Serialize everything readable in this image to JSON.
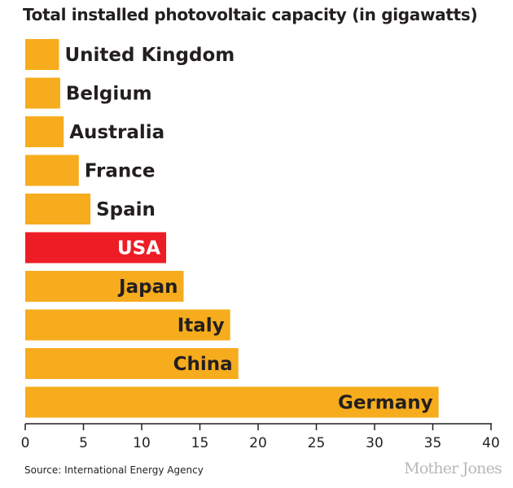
{
  "chart_data": {
    "type": "bar",
    "orientation": "horizontal",
    "title": "Total installed photovoltaic capacity (in gigawatts)",
    "categories": [
      "United Kingdom",
      "Belgium",
      "Australia",
      "France",
      "Spain",
      "USA",
      "Japan",
      "Italy",
      "China",
      "Germany"
    ],
    "values": [
      2.9,
      3.0,
      3.3,
      4.6,
      5.6,
      12.1,
      13.6,
      17.6,
      18.3,
      35.5
    ],
    "highlight": "USA",
    "xlim": [
      0,
      40
    ],
    "xticks": [
      0,
      5,
      10,
      15,
      20,
      25,
      30,
      35,
      40
    ],
    "xlabel": "",
    "ylabel": "",
    "grid": false,
    "colors": {
      "bar": "#f6ac1d",
      "highlight": "#ee1c25",
      "text": "#231f20",
      "highlight_text": "#ffffff"
    }
  },
  "footer": {
    "source": "Source: International Energy Agency",
    "credit": "Mother Jones"
  }
}
